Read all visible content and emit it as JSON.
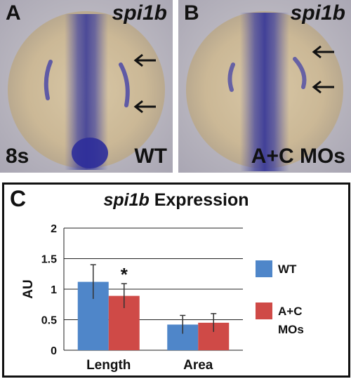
{
  "panels": [
    {
      "letter": "A",
      "gene": "spi1b",
      "stage": "8s",
      "condition": "WT"
    },
    {
      "letter": "B",
      "gene": "spi1b",
      "stage": "",
      "condition": "A+C MOs"
    }
  ],
  "colors": {
    "wt": "#4f86c9",
    "mo": "#cf4a47",
    "stain": "#3a3aa8"
  },
  "chart_data": {
    "type": "bar",
    "panel_letter": "C",
    "title_gene": "spi1b",
    "title_rest": " Expression",
    "ylabel": "AU",
    "ylim": [
      0,
      2
    ],
    "yticks": [
      "0",
      "0.5",
      "1",
      "1.5",
      "2"
    ],
    "grid": true,
    "legend_position": "right",
    "categories": [
      "Length",
      "Area"
    ],
    "series": [
      {
        "name": "WT",
        "values": [
          1.12,
          0.42
        ],
        "errors": [
          0.28,
          0.15
        ]
      },
      {
        "name": "A+C MOs",
        "values": [
          0.89,
          0.45
        ],
        "errors": [
          0.2,
          0.15
        ]
      }
    ],
    "annotations": [
      {
        "category": "Length",
        "series": "A+C MOs",
        "text": "*"
      }
    ]
  }
}
